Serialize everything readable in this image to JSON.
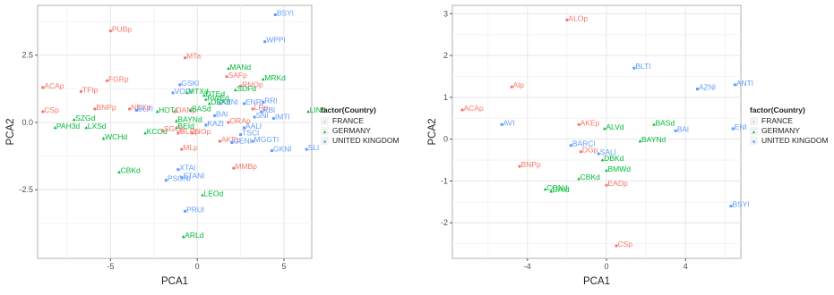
{
  "colors": {
    "FRANCE": "#F8766D",
    "GERMANY": "#00BA38",
    "UNITED KINGDOM": "#619CFF"
  },
  "legend": {
    "title": "factor(Country)",
    "entries": [
      {
        "name": "FRANCE",
        "symbol": "•"
      },
      {
        "name": "GERMANY",
        "symbol": "▲"
      },
      {
        "name": "UNITED KINGDOM",
        "symbol": "■"
      }
    ]
  },
  "chart_data": [
    {
      "type": "scatter",
      "xlabel": "PCA1",
      "ylabel": "PCA2",
      "xlim": [
        -9.2,
        6.6
      ],
      "ylim": [
        -5.05,
        4.35
      ],
      "xticks": [
        {
          "v": -5,
          "label": "-5"
        },
        {
          "v": 0,
          "label": "0"
        },
        {
          "v": 5,
          "label": "5"
        }
      ],
      "yticks": [
        {
          "v": -2.5,
          "label": "-2.5"
        },
        {
          "v": 0,
          "label": "0.0"
        },
        {
          "v": 2.5,
          "label": "2.5"
        }
      ],
      "grid": true,
      "legend": "right",
      "points": [
        {
          "x": 4.5,
          "y": 4.0,
          "label": "BSYl",
          "country": "UNITED KINGDOM"
        },
        {
          "x": 3.9,
          "y": 3.0,
          "label": "WPPl",
          "country": "UNITED KINGDOM"
        },
        {
          "x": -5.0,
          "y": 3.4,
          "label": "PUBp",
          "country": "FRANCE"
        },
        {
          "x": -0.7,
          "y": 2.4,
          "label": "MTa",
          "country": "FRANCE"
        },
        {
          "x": 1.8,
          "y": 2.0,
          "label": "MANd",
          "country": "GERMANY"
        },
        {
          "x": 1.7,
          "y": 1.7,
          "label": "SAFp",
          "country": "FRANCE"
        },
        {
          "x": 3.8,
          "y": 1.6,
          "label": "MRKd",
          "country": "GERMANY"
        },
        {
          "x": -5.2,
          "y": 1.55,
          "label": "FGRp",
          "country": "FRANCE"
        },
        {
          "x": -8.9,
          "y": 1.3,
          "label": "ACAp",
          "country": "FRANCE"
        },
        {
          "x": -6.7,
          "y": 1.15,
          "label": "TFIp",
          "country": "FRANCE"
        },
        {
          "x": -1.0,
          "y": 1.4,
          "label": "GSKl",
          "country": "UNITED KINGDOM"
        },
        {
          "x": 2.5,
          "y": 1.35,
          "label": "RNOp",
          "country": "FRANCE"
        },
        {
          "x": 2.2,
          "y": 1.2,
          "label": "SDFd",
          "country": "GERMANY"
        },
        {
          "x": -1.4,
          "y": 1.1,
          "label": "VODl",
          "country": "UNITED KINGDOM"
        },
        {
          "x": -0.6,
          "y": 1.1,
          "label": "MTXd",
          "country": "GERMANY"
        },
        {
          "x": 0.4,
          "y": 1.0,
          "label": "DTEd",
          "country": "GERMANY"
        },
        {
          "x": 3.8,
          "y": 0.75,
          "label": "RRl",
          "country": "UNITED KINGDOM"
        },
        {
          "x": 0.5,
          "y": 0.85,
          "label": "RWEd",
          "country": "GERMANY"
        },
        {
          "x": 0.7,
          "y": 0.7,
          "label": "DBKd",
          "country": "GERMANY"
        },
        {
          "x": 1.3,
          "y": 0.7,
          "label": "AZNl",
          "country": "UNITED KINGDOM"
        },
        {
          "x": 2.7,
          "y": 0.7,
          "label": "ENRl",
          "country": "UNITED KINGDOM"
        },
        {
          "x": -5.9,
          "y": 0.5,
          "label": "BNPp",
          "country": "FRANCE"
        },
        {
          "x": -3.9,
          "y": 0.5,
          "label": "NEXp",
          "country": "FRANCE"
        },
        {
          "x": -3.5,
          "y": 0.45,
          "label": "BLTl",
          "country": "UNITED KINGDOM"
        },
        {
          "x": -8.9,
          "y": 0.4,
          "label": "CSp",
          "country": "FRANCE"
        },
        {
          "x": -2.3,
          "y": 0.4,
          "label": "HOTa",
          "country": "GERMANY"
        },
        {
          "x": -1.3,
          "y": 0.4,
          "label": "DANp",
          "country": "FRANCE"
        },
        {
          "x": -0.4,
          "y": 0.45,
          "label": "BASd",
          "country": "GERMANY"
        },
        {
          "x": 3.2,
          "y": 0.5,
          "label": "LRp",
          "country": "FRANCE"
        },
        {
          "x": 3.7,
          "y": 0.4,
          "label": "RBl",
          "country": "UNITED KINGDOM"
        },
        {
          "x": 6.4,
          "y": 0.4,
          "label": "LINd",
          "country": "GERMANY"
        },
        {
          "x": -7.1,
          "y": 0.1,
          "label": "SZGd",
          "country": "GERMANY"
        },
        {
          "x": 1.0,
          "y": 0.25,
          "label": "BAl",
          "country": "UNITED KINGDOM"
        },
        {
          "x": 3.3,
          "y": 0.2,
          "label": "SNl",
          "country": "UNITED KINGDOM"
        },
        {
          "x": 4.4,
          "y": 0.15,
          "label": "IMTl",
          "country": "UNITED KINGDOM"
        },
        {
          "x": -1.2,
          "y": 0.05,
          "label": "BAYNd",
          "country": "GERMANY"
        },
        {
          "x": -8.2,
          "y": -0.2,
          "label": "PAH3d",
          "country": "GERMANY"
        },
        {
          "x": -6.4,
          "y": -0.2,
          "label": "LXSd",
          "country": "GERMANY"
        },
        {
          "x": 1.8,
          "y": 0.0,
          "label": "ORAp",
          "country": "FRANCE"
        },
        {
          "x": -1.2,
          "y": -0.2,
          "label": "BEId",
          "country": "GERMANY"
        },
        {
          "x": 0.5,
          "y": -0.1,
          "label": "KAZl",
          "country": "UNITED KINGDOM"
        },
        {
          "x": -3.0,
          "y": -0.4,
          "label": "KCOd",
          "country": "GERMANY"
        },
        {
          "x": -2.0,
          "y": -0.3,
          "label": "SGOp",
          "country": "FRANCE"
        },
        {
          "x": -1.1,
          "y": -0.4,
          "label": "GLEp",
          "country": "FRANCE"
        },
        {
          "x": -0.3,
          "y": -0.4,
          "label": "EIOp",
          "country": "FRANCE"
        },
        {
          "x": 2.7,
          "y": -0.2,
          "label": "AALl",
          "country": "UNITED KINGDOM"
        },
        {
          "x": 2.5,
          "y": -0.45,
          "label": "TSCl",
          "country": "UNITED KINGDOM"
        },
        {
          "x": -5.4,
          "y": -0.6,
          "label": "WCHd",
          "country": "GERMANY"
        },
        {
          "x": 1.3,
          "y": -0.7,
          "label": "AKEp",
          "country": "FRANCE"
        },
        {
          "x": 2.0,
          "y": -0.75,
          "label": "GENl",
          "country": "UNITED KINGDOM"
        },
        {
          "x": 3.2,
          "y": -0.7,
          "label": "MGGTl",
          "country": "UNITED KINGDOM"
        },
        {
          "x": -0.9,
          "y": -1.0,
          "label": "MLp",
          "country": "FRANCE"
        },
        {
          "x": 4.3,
          "y": -1.05,
          "label": "GKNl",
          "country": "UNITED KINGDOM"
        },
        {
          "x": 6.3,
          "y": -1.0,
          "label": "SLl",
          "country": "UNITED KINGDOM"
        },
        {
          "x": 2.1,
          "y": -1.7,
          "label": "MMBp",
          "country": "FRANCE"
        },
        {
          "x": -4.5,
          "y": -1.85,
          "label": "CBKd",
          "country": "GERMANY"
        },
        {
          "x": -1.1,
          "y": -1.75,
          "label": "XTAl",
          "country": "UNITED KINGDOM"
        },
        {
          "x": -1.8,
          "y": -2.15,
          "label": "PSONl",
          "country": "UNITED KINGDOM"
        },
        {
          "x": -0.9,
          "y": -2.05,
          "label": "STANl",
          "country": "UNITED KINGDOM"
        },
        {
          "x": 0.3,
          "y": -2.7,
          "label": "LEOd",
          "country": "GERMANY"
        },
        {
          "x": -0.7,
          "y": -3.3,
          "label": "PRUl",
          "country": "UNITED KINGDOM"
        },
        {
          "x": -0.8,
          "y": -4.25,
          "label": "ARLd",
          "country": "GERMANY"
        }
      ]
    },
    {
      "type": "scatter",
      "xlabel": "PCA1",
      "ylabel": "PCA2",
      "xlim": [
        -7.8,
        6.8
      ],
      "ylim": [
        -2.85,
        3.2
      ],
      "xticks": [
        {
          "v": -4,
          "label": "-4"
        },
        {
          "v": 0,
          "label": "0"
        },
        {
          "v": 4,
          "label": "4"
        }
      ],
      "yticks": [
        {
          "v": -2,
          "label": "-2"
        },
        {
          "v": -1,
          "label": "-1"
        },
        {
          "v": 0,
          "label": "0"
        },
        {
          "v": 1,
          "label": "1"
        },
        {
          "v": 2,
          "label": "2"
        },
        {
          "v": 3,
          "label": "3"
        }
      ],
      "grid": true,
      "legend": "right",
      "points": [
        {
          "x": -2.0,
          "y": 2.85,
          "label": "ALOp",
          "country": "FRANCE"
        },
        {
          "x": 1.4,
          "y": 1.7,
          "label": "BLTl",
          "country": "UNITED KINGDOM"
        },
        {
          "x": 6.5,
          "y": 1.3,
          "label": "ANTl",
          "country": "UNITED KINGDOM"
        },
        {
          "x": 4.6,
          "y": 1.2,
          "label": "AZNl",
          "country": "UNITED KINGDOM"
        },
        {
          "x": -4.8,
          "y": 1.25,
          "label": "Alp",
          "country": "FRANCE"
        },
        {
          "x": -7.3,
          "y": 0.7,
          "label": "ACAp",
          "country": "FRANCE"
        },
        {
          "x": -5.3,
          "y": 0.35,
          "label": "AVl",
          "country": "UNITED KINGDOM"
        },
        {
          "x": -1.4,
          "y": 0.35,
          "label": "AKEp",
          "country": "FRANCE"
        },
        {
          "x": -0.1,
          "y": 0.25,
          "label": "ALVd",
          "country": "GERMANY"
        },
        {
          "x": 2.4,
          "y": 0.35,
          "label": "BASd",
          "country": "GERMANY"
        },
        {
          "x": 3.5,
          "y": 0.2,
          "label": "BAl",
          "country": "UNITED KINGDOM"
        },
        {
          "x": 6.4,
          "y": 0.25,
          "label": "ENl",
          "country": "UNITED KINGDOM"
        },
        {
          "x": -1.8,
          "y": -0.15,
          "label": "BARCl",
          "country": "UNITED KINGDOM"
        },
        {
          "x": 1.7,
          "y": -0.05,
          "label": "BAYNd",
          "country": "GERMANY"
        },
        {
          "x": -1.3,
          "y": -0.3,
          "label": "DGp",
          "country": "FRANCE"
        },
        {
          "x": -0.4,
          "y": -0.35,
          "label": "SALl",
          "country": "UNITED KINGDOM"
        },
        {
          "x": -0.2,
          "y": -0.5,
          "label": "DBKd",
          "country": "GERMANY"
        },
        {
          "x": -4.4,
          "y": -0.65,
          "label": "BNPp",
          "country": "FRANCE"
        },
        {
          "x": 0.0,
          "y": -0.75,
          "label": "BMWd",
          "country": "GERMANY"
        },
        {
          "x": -1.4,
          "y": -0.95,
          "label": "CBKd",
          "country": "GERMANY"
        },
        {
          "x": 0.0,
          "y": -1.1,
          "label": "EADp",
          "country": "FRANCE"
        },
        {
          "x": -3.1,
          "y": -1.2,
          "label": "CONd",
          "country": "GERMANY"
        },
        {
          "x": -2.8,
          "y": -1.25,
          "label": "DAId",
          "country": "GERMANY"
        },
        {
          "x": 6.3,
          "y": -1.6,
          "label": "BSYl",
          "country": "UNITED KINGDOM"
        },
        {
          "x": 0.5,
          "y": -2.55,
          "label": "CSp",
          "country": "FRANCE"
        }
      ]
    }
  ]
}
